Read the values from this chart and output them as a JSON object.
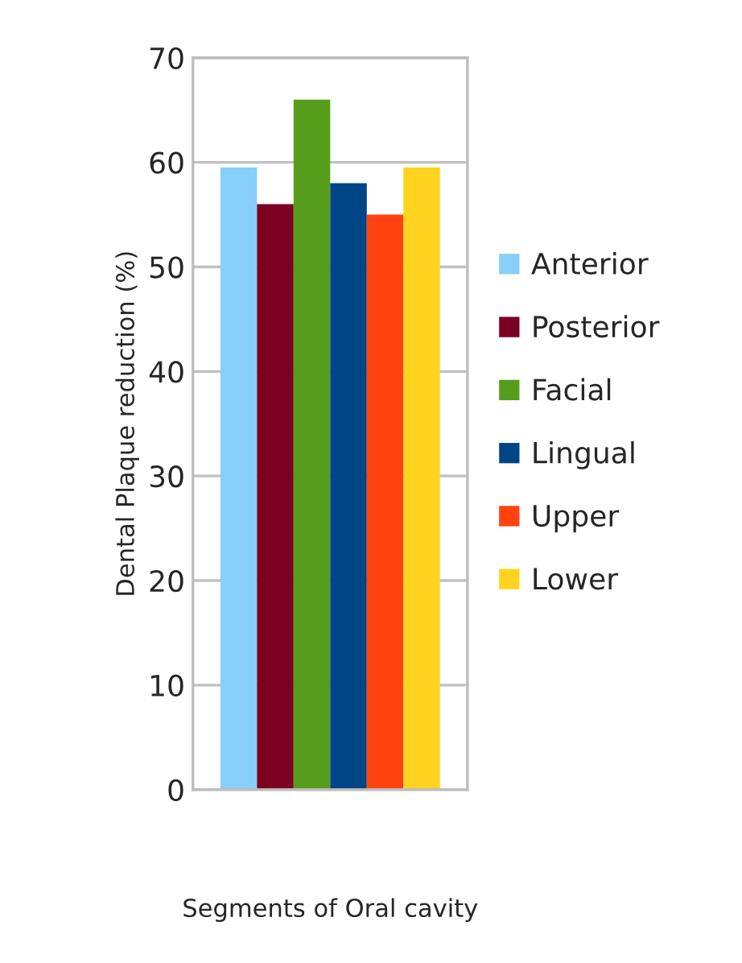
{
  "chart_data": {
    "type": "bar",
    "xlabel": "Segments of Oral cavity",
    "ylabel": "Dental Plaque reduction (%)",
    "categories": [
      null
    ],
    "series": [
      {
        "name": "Anterior",
        "color": "#87cefa",
        "values": [
          59.5
        ]
      },
      {
        "name": "Posterior",
        "color": "#7b0022",
        "values": [
          56
        ]
      },
      {
        "name": "Facial",
        "color": "#579d1c",
        "values": [
          66
        ]
      },
      {
        "name": "Lingual",
        "color": "#004586",
        "values": [
          58
        ]
      },
      {
        "name": "Upper",
        "color": "#ff420e",
        "values": [
          55
        ]
      },
      {
        "name": "Lower",
        "color": "#ffd320",
        "values": [
          59.5
        ]
      }
    ],
    "ylim": [
      0,
      70
    ],
    "yticks": [
      0,
      10,
      20,
      30,
      40,
      50,
      60,
      70
    ],
    "grid": "y",
    "legend": "right"
  }
}
